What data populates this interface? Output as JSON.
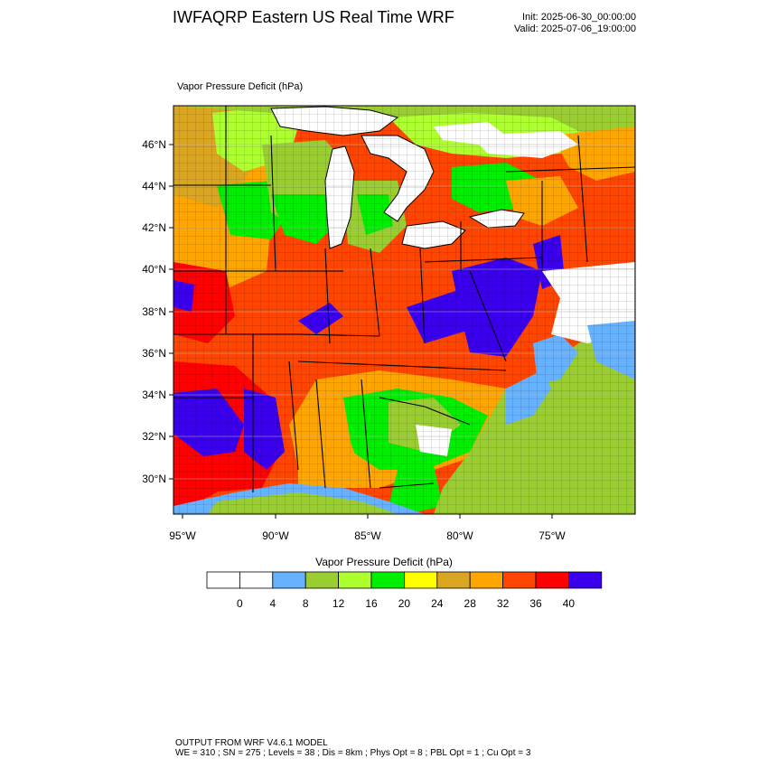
{
  "header": {
    "title": "IWFAQRP Eastern US Real Time WRF",
    "init": "Init: 2025-06-30_00:00:00",
    "valid": "Valid: 2025-07-06_19:00:00"
  },
  "field_label": "Vapor Pressure Deficit   (hPa)",
  "map": {
    "lat_labels": [
      "46°N",
      "44°N",
      "42°N",
      "40°N",
      "38°N",
      "36°N",
      "34°N",
      "32°N",
      "30°N"
    ],
    "lon_labels": [
      "95°W",
      "90°W",
      "85°W",
      "80°W",
      "75°W"
    ],
    "colors": {
      "water": "#ffffff",
      "land_default": "#e06020",
      "grid": "#b0b0b0",
      "border": "#000000"
    }
  },
  "colorbar": {
    "title": "Vapor Pressure Deficit  (hPa)",
    "tick_labels": [
      "0",
      "4",
      "8",
      "12",
      "16",
      "20",
      "24",
      "28",
      "32",
      "36",
      "40"
    ],
    "colors": [
      "#ffffff",
      "#ffffff",
      "#66b2ff",
      "#9acd32",
      "#adff2f",
      "#00ee00",
      "#ffff00",
      "#daa520",
      "#ffa500",
      "#ff4500",
      "#ff0000",
      "#3a00ee"
    ]
  },
  "footer": {
    "line1": "OUTPUT FROM WRF V4.6.1 MODEL",
    "line2": "WE = 310 ; SN = 275 ; Levels = 38 ; Dis = 8km ; Phys Opt = 8 ; PBL Opt = 1 ; Cu Opt = 3"
  }
}
